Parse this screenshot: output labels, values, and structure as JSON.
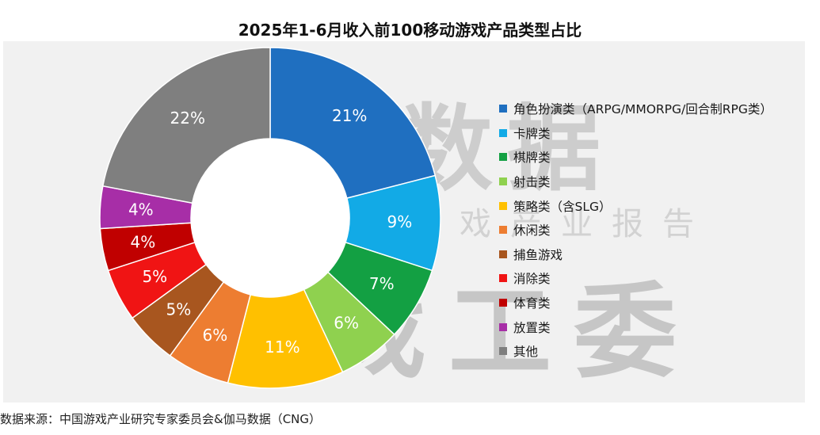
{
  "chart_data": {
    "type": "pie",
    "title": "2025年1-6月收入前100移动游戏产品类型占比",
    "categories": [
      "角色扮演类（ARPG/MMORPG/回合制RPG类）",
      "卡牌类",
      "棋牌类",
      "射击类",
      "策略类（含SLG）",
      "休闲类",
      "捕鱼游戏",
      "消除类",
      "体育类",
      "放置类",
      "其他"
    ],
    "values": [
      21,
      9,
      7,
      6,
      11,
      6,
      5,
      5,
      4,
      4,
      22
    ],
    "labels": [
      "21%",
      "9%",
      "7%",
      "6%",
      "11%",
      "6%",
      "5%",
      "5%",
      "4%",
      "4%",
      "22%"
    ],
    "colors": [
      "#1f6fc0",
      "#12aae6",
      "#13a043",
      "#8fd14f",
      "#ffc000",
      "#ed7d31",
      "#a8561f",
      "#f01414",
      "#c00000",
      "#a72ea7",
      "#7f7f7f"
    ],
    "legend_position": "right",
    "donut": true
  },
  "watermark": {
    "line1": "伽马数据",
    "line2": "微信号：游戏产业报告",
    "line3": "游戏工委"
  },
  "source": "数据来源：中国游戏产业研究专家委员会&伽马数据（CNG）"
}
